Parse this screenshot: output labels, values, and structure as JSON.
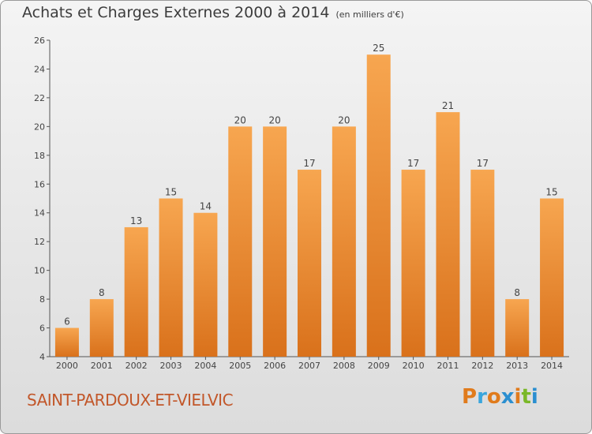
{
  "header": {
    "title": "Achats et Charges Externes 2000 à 2014",
    "unit": "(en milliers d'€)"
  },
  "footer": {
    "commune": "SAINT-PARDOUX-ET-VIELVIC",
    "brand": "Proxiti"
  },
  "colors": {
    "bar_top": "#f7a650",
    "bar_bottom": "#d9711b",
    "commune_text": "#c2572a",
    "logo_letters": [
      "#e07b1c",
      "#3aa6dd",
      "#e07b1c",
      "#2b8fd0",
      "#e07b1c",
      "#7ab828",
      "#2b8fd0"
    ]
  },
  "chart_data": {
    "type": "bar",
    "title": "Achats et Charges Externes 2000 à 2014",
    "subtitle": "(en milliers d'€)",
    "xlabel": "",
    "ylabel": "",
    "categories": [
      "2000",
      "2001",
      "2002",
      "2003",
      "2004",
      "2005",
      "2006",
      "2007",
      "2008",
      "2009",
      "2010",
      "2011",
      "2012",
      "2013",
      "2014"
    ],
    "values": [
      6,
      8,
      13,
      15,
      14,
      20,
      20,
      17,
      20,
      25,
      17,
      21,
      17,
      8,
      15
    ],
    "ylim": [
      4,
      26
    ],
    "yticks": [
      4,
      6,
      8,
      10,
      12,
      14,
      16,
      18,
      20,
      22,
      24,
      26
    ],
    "grid": false,
    "legend": "none"
  }
}
